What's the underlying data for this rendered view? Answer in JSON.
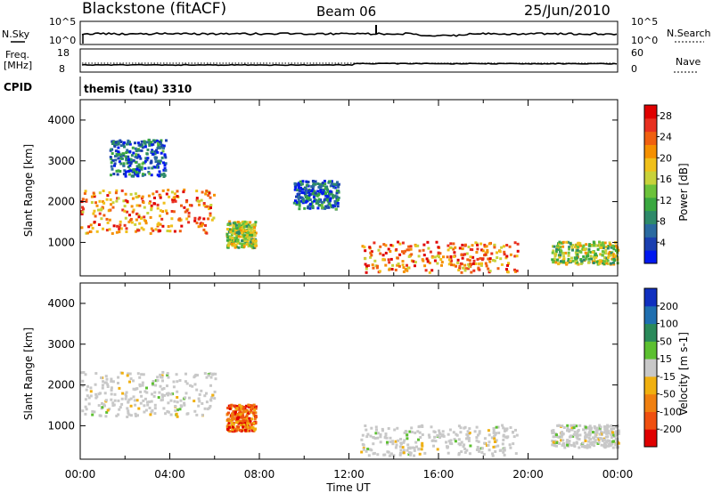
{
  "header": {
    "station": "Blackstone (fitACF)",
    "beam": "Beam 06",
    "date": "25/Jun/2010"
  },
  "top_panels": {
    "nsky_label": "N.Sky",
    "nsky_ticks": [
      "10^5",
      "10^0"
    ],
    "nsearch_label": "N.Search",
    "nsearch_ticks": [
      "10^5",
      "10^0"
    ],
    "freq_label": "Freq.",
    "freq_unit": "[MHz]",
    "freq_ticks": [
      "18",
      "8"
    ],
    "nave_label": "Nave",
    "nave_ticks": [
      "60",
      "0"
    ],
    "cpid_label": "CPID",
    "cpid_value": "themis (tau) 3310"
  },
  "chart_data": [
    {
      "type": "heatmap",
      "panel": "power",
      "ylabel": "Slant Range [km]",
      "y_ticks": [
        "1000",
        "2000",
        "3000",
        "4000"
      ],
      "ylim": [
        180,
        4500
      ],
      "xlim_hours": [
        0,
        24
      ],
      "colorbar": {
        "label": "Power [dB]",
        "ticks": [
          "4",
          "8",
          "12",
          "16",
          "20",
          "24",
          "28"
        ],
        "range": [
          0,
          30
        ],
        "colors": [
          "#0018f0",
          "#1a3fb0",
          "#2a6aa0",
          "#2e8a6a",
          "#3aa840",
          "#6cc23a",
          "#c8d23a",
          "#f0c01a",
          "#f59000",
          "#f06010",
          "#e83020",
          "#e00000"
        ]
      },
      "echo_regions": [
        {
          "t": [
            0.0,
            6.0
          ],
          "range": [
            1200,
            2300
          ],
          "level": "high"
        },
        {
          "t": [
            1.3,
            3.8
          ],
          "range": [
            2600,
            3500
          ],
          "level": "low"
        },
        {
          "t": [
            6.5,
            7.8
          ],
          "range": [
            850,
            1500
          ],
          "level": "medium"
        },
        {
          "t": [
            9.5,
            11.5
          ],
          "range": [
            1800,
            2500
          ],
          "level": "low"
        },
        {
          "t": [
            12.5,
            19.5
          ],
          "range": [
            250,
            1000
          ],
          "level": "high"
        },
        {
          "t": [
            21.0,
            24.0
          ],
          "range": [
            450,
            1000
          ],
          "level": "medium"
        }
      ]
    },
    {
      "type": "heatmap",
      "panel": "velocity",
      "ylabel": "Slant Range [km]",
      "y_ticks": [
        "1000",
        "2000",
        "3000",
        "4000"
      ],
      "ylim": [
        180,
        4500
      ],
      "xlim_hours": [
        0,
        24
      ],
      "x_ticks": [
        "00:00",
        "04:00",
        "08:00",
        "12:00",
        "16:00",
        "20:00",
        "00:00"
      ],
      "xlabel": "Time UT",
      "colorbar": {
        "label": "Velocity [m s-1]",
        "ticks": [
          "200",
          "100",
          "50",
          "15",
          "-15",
          "-50",
          "-100",
          "-200"
        ],
        "range": [
          -250,
          250
        ],
        "colors": [
          "#1030c0",
          "#1f6fb0",
          "#2a8a5a",
          "#5cc030",
          "#c8c8c8",
          "#f0b010",
          "#f08010",
          "#f05010",
          "#e00000"
        ]
      },
      "echo_regions": [
        {
          "t": [
            0.0,
            6.0
          ],
          "range": [
            1200,
            2300
          ],
          "level": "groundscatter"
        },
        {
          "t": [
            6.5,
            7.8
          ],
          "range": [
            850,
            1500
          ],
          "level": "negative"
        },
        {
          "t": [
            12.5,
            19.5
          ],
          "range": [
            250,
            1000
          ],
          "level": "groundscatter"
        },
        {
          "t": [
            21.0,
            24.0
          ],
          "range": [
            450,
            1000
          ],
          "level": "groundscatter"
        }
      ]
    }
  ]
}
